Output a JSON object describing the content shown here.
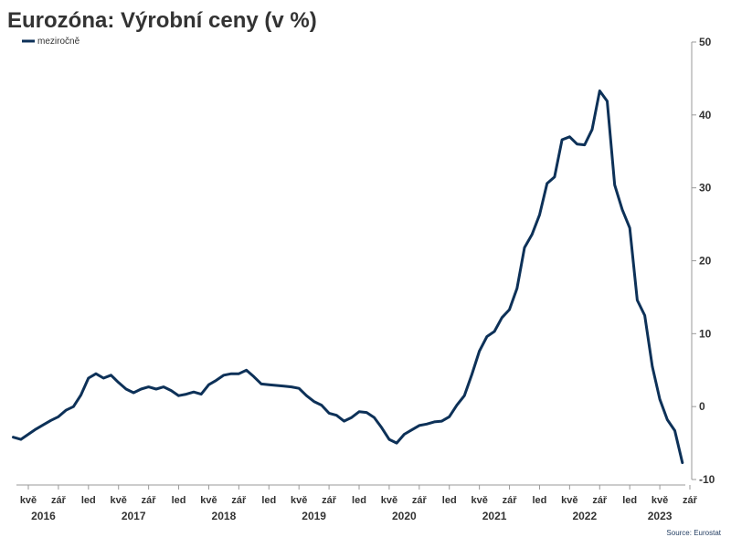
{
  "chart_data": {
    "type": "line",
    "title": "Eurozóna: Výrobní ceny (v %)",
    "source": "Source: Eurostat",
    "legend": {
      "position": "top-left"
    },
    "ylim": [
      -10,
      50
    ],
    "yticks": [
      50,
      40,
      30,
      20,
      10,
      0,
      -10
    ],
    "grid": false,
    "colors": {
      "series": "#0d3158",
      "text": "#333333",
      "axis": "#999999",
      "source": "#1f3a5f"
    },
    "x_ticks": [
      {
        "label": "kvě",
        "date": "2016-05"
      },
      {
        "label": "zář",
        "date": "2016-09"
      },
      {
        "label": "led",
        "date": "2017-01"
      },
      {
        "label": "kvě",
        "date": "2017-05"
      },
      {
        "label": "zář",
        "date": "2017-09"
      },
      {
        "label": "led",
        "date": "2018-01"
      },
      {
        "label": "kvě",
        "date": "2018-05"
      },
      {
        "label": "zář",
        "date": "2018-09"
      },
      {
        "label": "led",
        "date": "2019-01"
      },
      {
        "label": "kvě",
        "date": "2019-05"
      },
      {
        "label": "zář",
        "date": "2019-09"
      },
      {
        "label": "led",
        "date": "2020-01"
      },
      {
        "label": "kvě",
        "date": "2020-05"
      },
      {
        "label": "zář",
        "date": "2020-09"
      },
      {
        "label": "led",
        "date": "2021-01"
      },
      {
        "label": "kvě",
        "date": "2021-05"
      },
      {
        "label": "zář",
        "date": "2021-09"
      },
      {
        "label": "led",
        "date": "2022-01"
      },
      {
        "label": "kvě",
        "date": "2022-05"
      },
      {
        "label": "zář",
        "date": "2022-09"
      },
      {
        "label": "led",
        "date": "2023-01"
      },
      {
        "label": "kvě",
        "date": "2023-05"
      },
      {
        "label": "zář",
        "date": "2023-09"
      }
    ],
    "years": [
      {
        "label": "2016",
        "date": "2016-07"
      },
      {
        "label": "2017",
        "date": "2017-07"
      },
      {
        "label": "2018",
        "date": "2018-07"
      },
      {
        "label": "2019",
        "date": "2019-07"
      },
      {
        "label": "2020",
        "date": "2020-07"
      },
      {
        "label": "2021",
        "date": "2021-07"
      },
      {
        "label": "2022",
        "date": "2022-07"
      },
      {
        "label": "2023",
        "date": "2023-05"
      }
    ],
    "series": [
      {
        "name": "meziročně",
        "x_start": "2016-03",
        "x_step": "1 month",
        "values": [
          -4.2,
          -4.5,
          -3.8,
          -3.1,
          -2.5,
          -1.9,
          -1.4,
          -0.5,
          0.0,
          1.6,
          3.9,
          4.5,
          3.9,
          4.3,
          3.3,
          2.4,
          1.9,
          2.4,
          2.7,
          2.4,
          2.7,
          2.2,
          1.5,
          1.7,
          2.0,
          1.7,
          3.0,
          3.6,
          4.3,
          4.5,
          4.5,
          5.0,
          4.1,
          3.1,
          3.0,
          2.9,
          2.8,
          2.7,
          2.5,
          1.5,
          0.7,
          0.2,
          -0.9,
          -1.2,
          -2.0,
          -1.5,
          -0.7,
          -0.8,
          -1.5,
          -2.9,
          -4.5,
          -5.0,
          -3.8,
          -3.2,
          -2.6,
          -2.4,
          -2.1,
          -2.0,
          -1.4,
          0.2,
          1.5,
          4.4,
          7.6,
          9.6,
          10.3,
          12.2,
          13.3,
          16.2,
          21.8,
          23.6,
          26.3,
          30.6,
          31.5,
          36.6,
          37.0,
          36.0,
          35.9,
          38.0,
          43.3,
          41.9,
          30.4,
          27.0,
          24.5,
          14.6,
          12.5,
          5.5,
          1.0,
          -1.8,
          -3.3,
          -7.7
        ]
      }
    ]
  }
}
